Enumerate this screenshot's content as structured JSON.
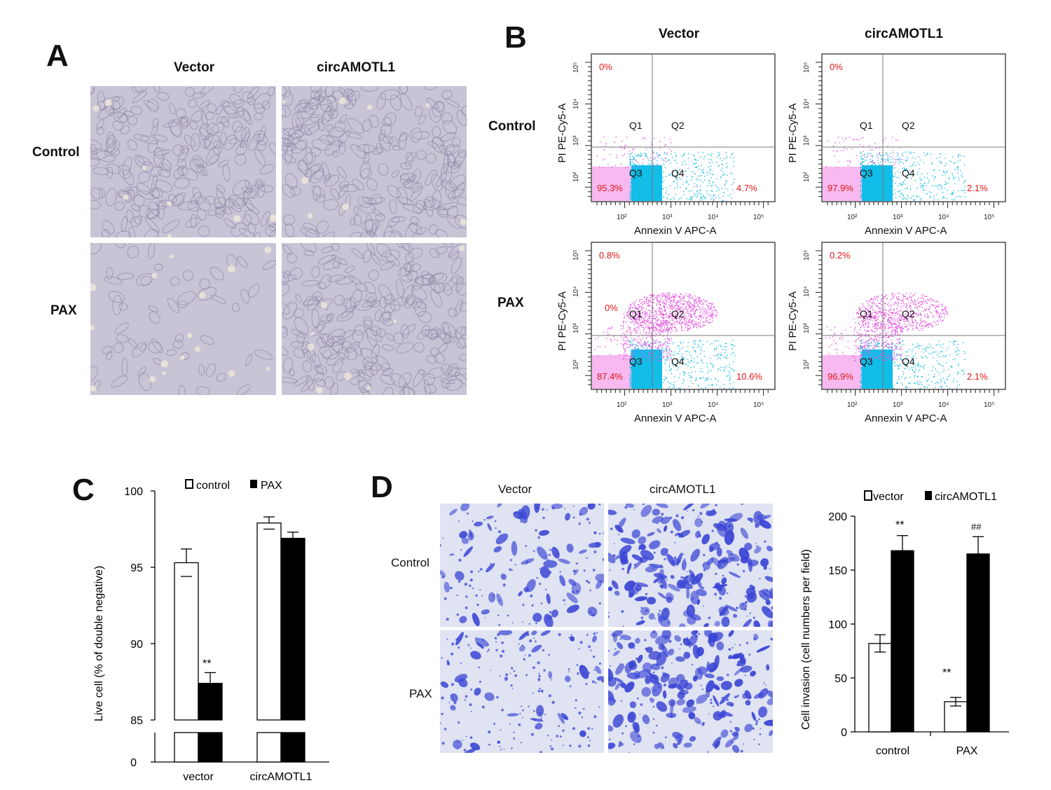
{
  "panels": {
    "A": {
      "letter": "A",
      "columns": [
        "Vector",
        "circAMOTL1"
      ],
      "rows": [
        "Control",
        "PAX"
      ]
    },
    "B": {
      "letter": "B",
      "columns": [
        "Vector",
        "circAMOTL1"
      ],
      "rows": [
        "Control",
        "PAX"
      ],
      "y_axis_label": "PI PE-Cy5-A",
      "x_axis_label": "Annexin V APC-A",
      "tick_labels": [
        "10²",
        "10³",
        "10⁴",
        "10⁵"
      ],
      "quadrants": [
        "Q1",
        "Q2",
        "Q3",
        "Q4"
      ],
      "plots": [
        {
          "row": "Control",
          "col": "Vector",
          "q1": "0%",
          "q1b": "",
          "q3": "95.3%",
          "q4": "4.7%"
        },
        {
          "row": "Control",
          "col": "circAMOTL1",
          "q1": "0%",
          "q1b": "",
          "q3": "97.9%",
          "q4": "2.1%"
        },
        {
          "row": "PAX",
          "col": "Vector",
          "q1": "0.8%",
          "q1b": "0%",
          "q3": "87.4%",
          "q4": "10.6%"
        },
        {
          "row": "PAX",
          "col": "circAMOTL1",
          "q1": "0.2%",
          "q1b": "",
          "q3": "96.9%",
          "q4": "2.1%"
        }
      ]
    },
    "C": {
      "letter": "C",
      "legend": [
        "control",
        "PAX"
      ],
      "ylabel": "Live cell (% of double negative)",
      "y_ticks": [
        "100",
        "95",
        "90",
        "85",
        "0"
      ],
      "categories": [
        "vector",
        "circAMOTL1"
      ],
      "significance": "**"
    },
    "D": {
      "letter": "D",
      "columns": [
        "Vector",
        "circAMOTL1"
      ],
      "rows": [
        "Control",
        "PAX"
      ],
      "legend": [
        "vector",
        "circAMOTL1"
      ],
      "ylabel": "Cell invasion (cell numbers per field)",
      "y_ticks": [
        "200",
        "150",
        "100",
        "50",
        "0"
      ],
      "categories": [
        "control",
        "PAX"
      ],
      "sig_control": "**",
      "sig_pax_vector": "**",
      "sig_pax_circ": "##"
    }
  },
  "chart_data": [
    {
      "type": "bar",
      "categories": [
        "vector",
        "circAMOTL1"
      ],
      "series": [
        {
          "name": "control",
          "values": [
            95.3,
            97.9
          ],
          "errors": [
            0.9,
            0.4
          ]
        },
        {
          "name": "PAX",
          "values": [
            87.4,
            96.9
          ],
          "errors": [
            0.7,
            0.4
          ]
        }
      ],
      "ylabel": "Live cell (% of double negative)",
      "ylim": [
        85,
        100
      ],
      "axis_break": true,
      "legend": "top"
    },
    {
      "type": "bar",
      "categories": [
        "control",
        "PAX"
      ],
      "series": [
        {
          "name": "vector",
          "values": [
            82,
            28
          ],
          "errors": [
            8,
            4
          ]
        },
        {
          "name": "circAMOTL1",
          "values": [
            168,
            165
          ],
          "errors": [
            14,
            16
          ]
        }
      ],
      "ylabel": "Cell invasion (cell numbers per field)",
      "ylim": [
        0,
        200
      ],
      "legend": "top"
    }
  ],
  "colors": {
    "micro_bg": "#c9c3d6",
    "stain_bg": "#dfe3f2",
    "stain_cell": "#3a45d4",
    "q3_pink": "#f7b9ef",
    "q3_cyan": "#12bde8",
    "dots_pink": "#e655e0",
    "pct_red": "#e01818"
  }
}
